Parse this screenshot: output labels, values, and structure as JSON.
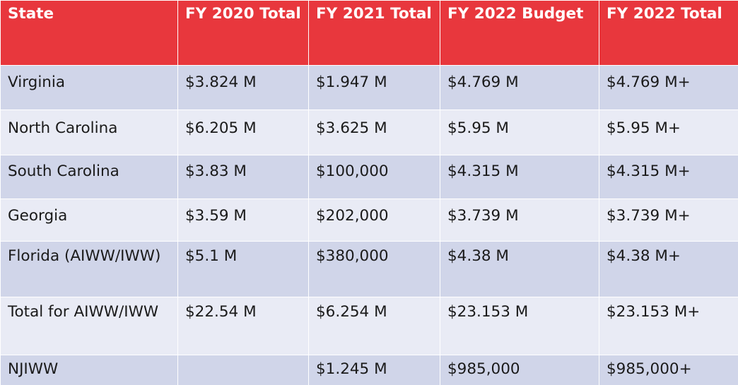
{
  "table": {
    "headers": [
      "State",
      "FY 2020 Total",
      "FY 2021 Total",
      "FY 2022 Budget",
      "FY 2022 Total"
    ],
    "rows": [
      [
        "Virginia",
        "$3.824 M",
        "$1.947 M",
        "$4.769 M",
        "$4.769 M+"
      ],
      [
        "North Carolina",
        "$6.205 M",
        "$3.625 M",
        "$5.95 M",
        "$5.95 M+"
      ],
      [
        "South Carolina",
        "$3.83 M",
        "$100,000",
        "$4.315 M",
        "$4.315 M+"
      ],
      [
        "Georgia",
        "$3.59 M",
        "$202,000",
        "$3.739 M",
        "$3.739 M+"
      ],
      [
        "Florida (AIWW/IWW)",
        "$5.1 M",
        "$380,000",
        "$4.38 M",
        "$4.38 M+"
      ],
      [
        "Total for AIWW/IWW",
        "$22.54 M",
        "$6.254 M",
        "$23.153 M",
        "$23.153 M+"
      ],
      [
        "NJIWW",
        "",
        "$1.245 M",
        "$985,000",
        "$985,000+"
      ]
    ]
  },
  "colors": {
    "header_bg": "#e8373d",
    "row_odd_bg": "#d0d5e9",
    "row_even_bg": "#e9ebf5"
  }
}
